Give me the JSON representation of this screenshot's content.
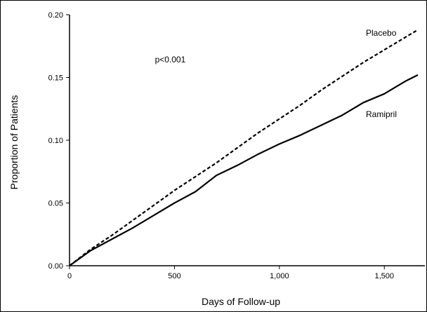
{
  "chart_data": {
    "type": "line",
    "xlabel": "Days of Follow-up",
    "ylabel": "Proportion of Patients",
    "xlim": [
      0,
      1700
    ],
    "ylim": [
      0,
      0.2
    ],
    "x_ticks": [
      {
        "value": 0,
        "label": "0"
      },
      {
        "value": 500,
        "label": "500"
      },
      {
        "value": 1000,
        "label": "1,000"
      },
      {
        "value": 1500,
        "label": "1,500"
      }
    ],
    "y_ticks": [
      {
        "value": 0,
        "label": "0.00"
      },
      {
        "value": 0.05,
        "label": "0.05"
      },
      {
        "value": 0.1,
        "label": "0.10"
      },
      {
        "value": 0.15,
        "label": "0.15"
      },
      {
        "value": 0.2,
        "label": "0.20"
      }
    ],
    "grid": false,
    "annotations": [
      {
        "text": "p<0.001",
        "x": 480,
        "y": 0.162
      }
    ],
    "series": [
      {
        "name": "Placebo",
        "style": "dashed",
        "color": "#000000",
        "x": [
          0,
          100,
          200,
          300,
          400,
          500,
          600,
          700,
          800,
          900,
          1000,
          1100,
          1200,
          1300,
          1400,
          1500,
          1600,
          1660
        ],
        "y": [
          0,
          0.013,
          0.024,
          0.036,
          0.048,
          0.06,
          0.071,
          0.082,
          0.094,
          0.106,
          0.117,
          0.128,
          0.14,
          0.151,
          0.162,
          0.172,
          0.182,
          0.188
        ]
      },
      {
        "name": "Ramipril",
        "style": "solid",
        "color": "#000000",
        "x": [
          0,
          100,
          200,
          300,
          400,
          500,
          600,
          700,
          800,
          900,
          1000,
          1100,
          1200,
          1300,
          1400,
          1500,
          1550,
          1600,
          1660
        ],
        "y": [
          0,
          0.012,
          0.021,
          0.03,
          0.04,
          0.05,
          0.059,
          0.072,
          0.08,
          0.089,
          0.097,
          0.104,
          0.112,
          0.12,
          0.13,
          0.137,
          0.142,
          0.147,
          0.152
        ]
      }
    ]
  }
}
